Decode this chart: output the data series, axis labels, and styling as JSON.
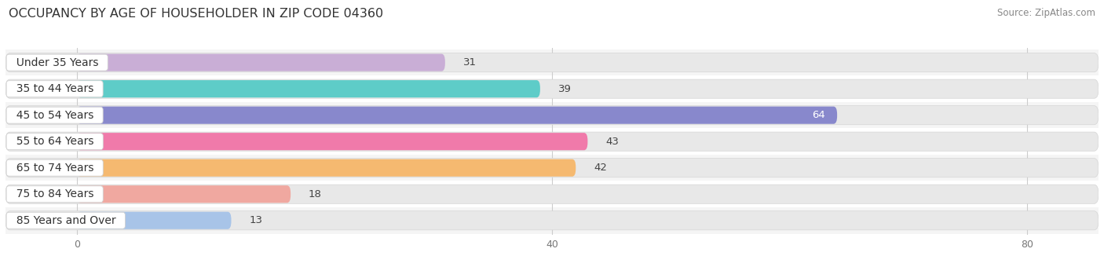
{
  "title": "OCCUPANCY BY AGE OF HOUSEHOLDER IN ZIP CODE 04360",
  "source": "Source: ZipAtlas.com",
  "categories": [
    "Under 35 Years",
    "35 to 44 Years",
    "45 to 54 Years",
    "55 to 64 Years",
    "65 to 74 Years",
    "75 to 84 Years",
    "85 Years and Over"
  ],
  "values": [
    31,
    39,
    64,
    43,
    42,
    18,
    13
  ],
  "bar_colors": [
    "#c9aed6",
    "#5eccc8",
    "#8888cc",
    "#f07aaa",
    "#f5b970",
    "#f0a8a0",
    "#a8c4e8"
  ],
  "xlim_left": -6,
  "xlim_right": 86,
  "xticks": [
    0,
    40,
    80
  ],
  "bar_height": 0.72,
  "background_color": "#ffffff",
  "bar_bg_color": "#e8e8e8",
  "row_bg_color": "#f5f5f5",
  "title_fontsize": 11.5,
  "label_fontsize": 10,
  "value_fontsize": 9.5,
  "tick_fontsize": 9,
  "value_inside_threshold": 60
}
